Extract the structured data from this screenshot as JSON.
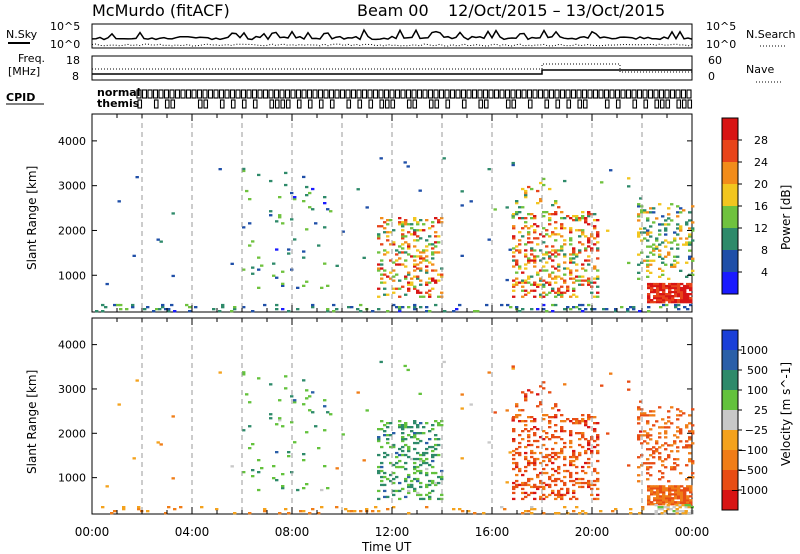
{
  "header": {
    "station": "McMurdo (fitACF)",
    "beam": "Beam 00",
    "dates": "12/Oct/2015 – 13/Oct/2015"
  },
  "top_panels": {
    "nsky_label": "N.Sky",
    "nsearch_label": "N.Search",
    "nsky_ticks": [
      "10^5",
      "10^0"
    ],
    "nsearch_ticks": [
      "10^5",
      "10^0"
    ],
    "freq_label_1": "Freq.",
    "freq_label_2": "[MHz]",
    "freq_ticks": [
      "18",
      "8"
    ],
    "nave_label": "Nave",
    "nave_ticks": [
      "60",
      "0"
    ],
    "cpid_label": "CPID",
    "cpid_first_line1": "normal",
    "cpid_first_line2": "themis",
    "cpid_glyph_color": "#000000"
  },
  "chart_data": [
    {
      "type": "heatmap",
      "name": "Power",
      "xlabel": "",
      "ylabel": "Slant Range [km]",
      "xlim": [
        0,
        24
      ],
      "ylim": [
        180,
        4600
      ],
      "yticks": [
        "1000",
        "2000",
        "3000",
        "4000"
      ],
      "colorbar_label": "Power [dB]",
      "colorbar_ticks": [
        "4",
        "8",
        "12",
        "16",
        "20",
        "24",
        "28"
      ],
      "colorbar_colors": [
        "#1a1aff",
        "#1f4fa8",
        "#2e8a6a",
        "#6fc23e",
        "#f2c61f",
        "#f28c1a",
        "#e8441a",
        "#d81414"
      ],
      "colorbar_range": [
        0,
        32
      ],
      "scatter_regions": [
        {
          "t0": 0.3,
          "t1": 3.5,
          "r0": 200,
          "r1": 3400,
          "density": 0.004,
          "level": [
            0.15,
            0.3
          ]
        },
        {
          "t0": 3.5,
          "t1": 6.0,
          "r0": 200,
          "r1": 3500,
          "density": 0.004,
          "level": [
            0.15,
            0.35
          ]
        },
        {
          "t0": 6.0,
          "t1": 9.5,
          "r0": 700,
          "r1": 3400,
          "density": 0.03,
          "level": [
            0.1,
            0.5
          ]
        },
        {
          "t0": 9.5,
          "t1": 11.5,
          "r0": 200,
          "r1": 3500,
          "density": 0.008,
          "level": [
            0.1,
            0.4
          ]
        },
        {
          "t0": 11.4,
          "t1": 14.0,
          "r0": 500,
          "r1": 2300,
          "density": 0.22,
          "level": [
            0.3,
            0.95
          ]
        },
        {
          "t0": 11.5,
          "t1": 14.5,
          "r0": 2600,
          "r1": 3600,
          "density": 0.015,
          "level": [
            0.15,
            0.5
          ]
        },
        {
          "t0": 14.5,
          "t1": 16.8,
          "r0": 200,
          "r1": 3500,
          "density": 0.005,
          "level": [
            0.15,
            0.4
          ]
        },
        {
          "t0": 16.8,
          "t1": 20.2,
          "r0": 500,
          "r1": 2400,
          "density": 0.26,
          "level": [
            0.3,
            1.0
          ]
        },
        {
          "t0": 16.8,
          "t1": 19.5,
          "r0": 2500,
          "r1": 3200,
          "density": 0.05,
          "level": [
            0.3,
            0.8
          ]
        },
        {
          "t0": 20.2,
          "t1": 22.0,
          "r0": 400,
          "r1": 3500,
          "density": 0.012,
          "level": [
            0.15,
            0.6
          ]
        },
        {
          "t0": 21.8,
          "t1": 24.0,
          "r0": 900,
          "r1": 2600,
          "density": 0.18,
          "level": [
            0.2,
            0.7
          ]
        },
        {
          "t0": 22.2,
          "t1": 24.0,
          "r0": 380,
          "r1": 800,
          "density": 0.8,
          "level": [
            0.78,
            1.0
          ]
        },
        {
          "t0": 0.0,
          "t1": 24.0,
          "r0": 180,
          "r1": 360,
          "density": 0.18,
          "level": [
            0.1,
            0.45
          ]
        }
      ]
    },
    {
      "type": "heatmap",
      "name": "Velocity",
      "xlabel": "Time UT",
      "ylabel": "Slant Range [km]",
      "xlim": [
        0,
        24
      ],
      "ylim": [
        180,
        4600
      ],
      "xticks": [
        "00:00",
        "04:00",
        "08:00",
        "12:00",
        "16:00",
        "20:00",
        "00:00"
      ],
      "yticks": [
        "1000",
        "2000",
        "3000",
        "4000"
      ],
      "colorbar_label": "Velocity [m s^-1]",
      "colorbar_ticks": [
        "1000",
        "500",
        "100",
        "25",
        "−25",
        "−100",
        "−500",
        "−1000"
      ],
      "colorbar_colors": [
        "#1a3fd8",
        "#2a5fa8",
        "#2e8a6a",
        "#63c23c",
        "#c8c8c8",
        "#f4a21c",
        "#f07d17",
        "#e84d14",
        "#d81414"
      ],
      "scatter_regions": [
        {
          "t0": 0.3,
          "t1": 3.5,
          "r0": 200,
          "r1": 3400,
          "density": 0.004,
          "level": [
            0.55,
            0.75
          ]
        },
        {
          "t0": 3.5,
          "t1": 6.0,
          "r0": 200,
          "r1": 3500,
          "density": 0.004,
          "level": [
            0.45,
            0.75
          ]
        },
        {
          "t0": 6.0,
          "t1": 9.5,
          "r0": 700,
          "r1": 3400,
          "density": 0.03,
          "level": [
            0.2,
            0.45
          ]
        },
        {
          "t0": 9.5,
          "t1": 11.5,
          "r0": 200,
          "r1": 3500,
          "density": 0.008,
          "level": [
            0.3,
            0.8
          ]
        },
        {
          "t0": 11.4,
          "t1": 14.0,
          "r0": 500,
          "r1": 2300,
          "density": 0.22,
          "level": [
            0.2,
            0.45
          ]
        },
        {
          "t0": 11.5,
          "t1": 14.5,
          "r0": 2600,
          "r1": 3600,
          "density": 0.015,
          "level": [
            0.3,
            0.8
          ]
        },
        {
          "t0": 14.5,
          "t1": 16.8,
          "r0": 200,
          "r1": 3500,
          "density": 0.005,
          "level": [
            0.5,
            0.9
          ]
        },
        {
          "t0": 16.8,
          "t1": 20.2,
          "r0": 500,
          "r1": 2400,
          "density": 0.26,
          "level": [
            0.72,
            0.92
          ]
        },
        {
          "t0": 16.8,
          "t1": 19.5,
          "r0": 2500,
          "r1": 3200,
          "density": 0.05,
          "level": [
            0.75,
            0.92
          ]
        },
        {
          "t0": 20.2,
          "t1": 22.0,
          "r0": 400,
          "r1": 3500,
          "density": 0.012,
          "level": [
            0.7,
            0.92
          ]
        },
        {
          "t0": 21.8,
          "t1": 24.0,
          "r0": 900,
          "r1": 2600,
          "density": 0.18,
          "level": [
            0.7,
            0.88
          ]
        },
        {
          "t0": 22.2,
          "t1": 24.0,
          "r0": 380,
          "r1": 800,
          "density": 0.8,
          "level": [
            0.7,
            0.85
          ]
        },
        {
          "t0": 22.5,
          "t1": 24.0,
          "r0": 180,
          "r1": 400,
          "density": 0.5,
          "level": [
            0.4,
            0.6
          ]
        },
        {
          "t0": 0.0,
          "t1": 22.0,
          "r0": 180,
          "r1": 360,
          "density": 0.12,
          "level": [
            0.55,
            0.75
          ]
        }
      ]
    }
  ],
  "divider_times": [
    2,
    4,
    6,
    8,
    10,
    12,
    14,
    16,
    18,
    20,
    22
  ]
}
